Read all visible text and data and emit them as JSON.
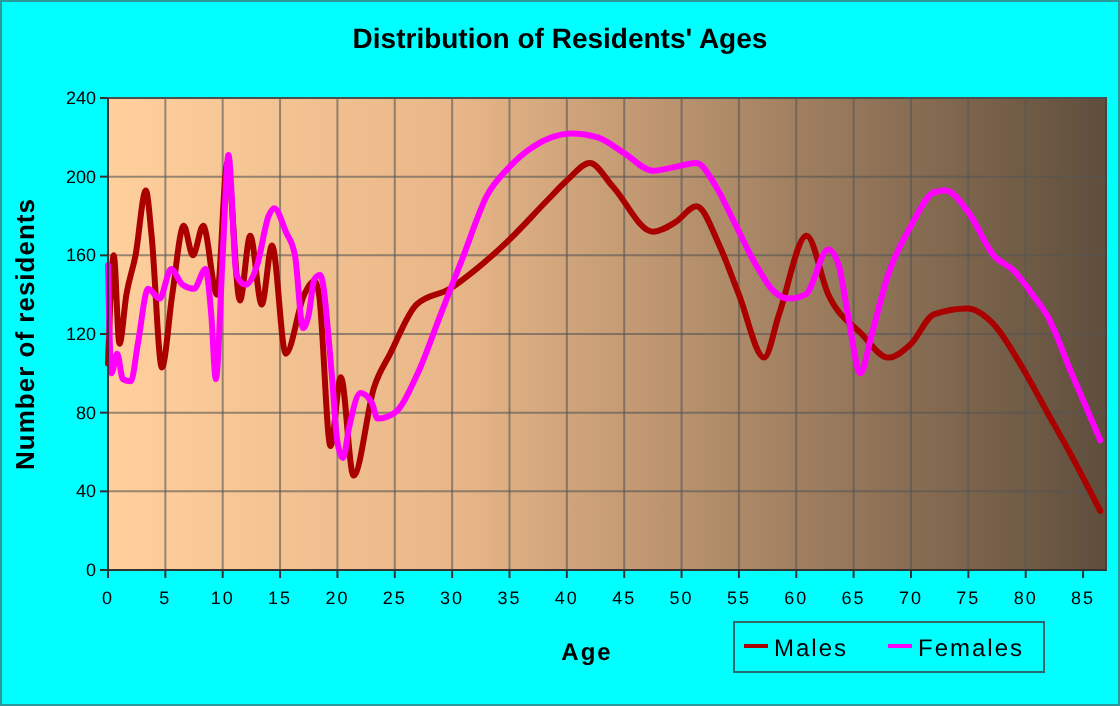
{
  "chart_data": {
    "type": "line",
    "title": "Distribution of Residents' Ages",
    "xlabel": "Age",
    "ylabel": "Number of residents",
    "xlim": [
      0,
      87
    ],
    "xticks": [
      0,
      5,
      10,
      15,
      20,
      25,
      30,
      35,
      40,
      45,
      50,
      55,
      60,
      65,
      70,
      75,
      80,
      85
    ],
    "ylim": [
      0,
      240
    ],
    "yticks": [
      0,
      40,
      80,
      120,
      160,
      200,
      240
    ],
    "grid": true,
    "legend": "bottom right",
    "marker": "none",
    "line_style": "solid",
    "series": [
      {
        "name": "Males",
        "color": "#aa0000",
        "x": [
          0,
          0.5,
          1,
          1.6,
          2.4,
          3.3,
          3.8,
          4.7,
          5.6,
          6.6,
          7.4,
          8.3,
          9.5,
          10.4,
          11.5,
          12.4,
          13.4,
          14.3,
          15.5,
          17.1,
          18,
          18.4,
          19.4,
          20.3,
          21.4,
          23.2,
          24.6,
          26.9,
          29.8,
          32.1,
          35,
          38.3,
          40,
          42,
          44,
          47.5,
          49.5,
          51.3,
          53.3,
          55,
          57.2,
          58.5,
          60.9,
          62.8,
          65.7,
          68,
          70,
          72,
          74.9,
          77.2,
          79.5,
          81.9,
          84,
          86.5
        ],
        "values": [
          105,
          160,
          115,
          140,
          160,
          193,
          170,
          103,
          140,
          175,
          160,
          175,
          140,
          207,
          137,
          170,
          135,
          165,
          110,
          140,
          147,
          140,
          63,
          98,
          48,
          93,
          110,
          135,
          143,
          153,
          168,
          188,
          198,
          207,
          195,
          172,
          177,
          185,
          165,
          140,
          108,
          130,
          170,
          140,
          120,
          108,
          115,
          130,
          133,
          125,
          105,
          80,
          58,
          30
        ]
      },
      {
        "name": "Females",
        "color": "#ff00ff",
        "x": [
          0,
          0.3,
          0.8,
          1.3,
          2,
          2.6,
          3.5,
          4.5,
          5.5,
          6.5,
          7.5,
          8.5,
          9,
          9.4,
          10,
          10.5,
          11.2,
          12,
          13,
          14,
          14.5,
          15.5,
          16.3,
          17,
          17.5,
          18,
          18.5,
          19.5,
          20,
          20.5,
          21,
          22,
          23,
          23.5,
          25,
          27,
          29,
          31,
          33,
          35,
          37,
          40.4,
          42.7,
          45,
          47.5,
          49.5,
          51.3,
          53,
          54.5,
          56.5,
          58,
          59.4,
          60.8,
          62.8,
          63.7,
          64.5,
          65.6,
          66.5,
          68,
          70,
          72,
          73,
          75,
          77.2,
          79,
          80.6,
          82,
          84,
          86.5
        ],
        "values": [
          155,
          100,
          110,
          97,
          96,
          115,
          143,
          138,
          153,
          145,
          143,
          153,
          130,
          97,
          160,
          211,
          150,
          145,
          155,
          180,
          184,
          172,
          160,
          123,
          130,
          148,
          150,
          100,
          65,
          57,
          72,
          90,
          85,
          77,
          80,
          100,
          130,
          160,
          190,
          205,
          215,
          222,
          220,
          212,
          203,
          205,
          207,
          195,
          178,
          155,
          142,
          138,
          140,
          163,
          155,
          130,
          100,
          118,
          150,
          175,
          192,
          193,
          182,
          160,
          152,
          140,
          128,
          100,
          66
        ]
      }
    ]
  }
}
